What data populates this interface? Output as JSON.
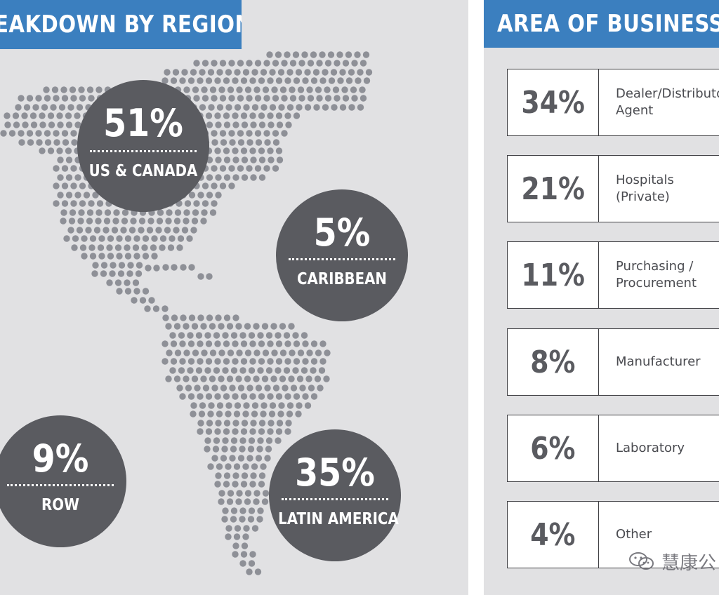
{
  "left_panel": {
    "title": "EAKDOWN BY REGION",
    "regions": [
      {
        "id": "us-canada",
        "percent": "51%",
        "label": "US & CANADA"
      },
      {
        "id": "caribbean",
        "percent": "5%",
        "label": "CARIBBEAN"
      },
      {
        "id": "row",
        "percent": "9%",
        "label": "ROW"
      },
      {
        "id": "latin-america",
        "percent": "35%",
        "label": "LATIN AMERICA"
      }
    ]
  },
  "right_panel": {
    "title": "AREA OF BUSINESS",
    "rows": [
      {
        "percent": "34%",
        "category": "Dealer/Distributo\nAgent"
      },
      {
        "percent": "21%",
        "category": "Hospitals (Private)"
      },
      {
        "percent": "11%",
        "category": "Purchasing /\nProcurement"
      },
      {
        "percent": "8%",
        "category": "Manufacturer"
      },
      {
        "percent": "6%",
        "category": "Laboratory"
      },
      {
        "percent": "4%",
        "category": "Other"
      }
    ]
  },
  "watermark": {
    "text": "慧康公",
    "icon": "wechat-icon"
  },
  "colors": {
    "header_blue": "#3b7fbf",
    "panel_bg": "#e1e1e3",
    "bubble": "#5a5b60",
    "map_dot": "#8e9097",
    "text_dark": "#4a4b50"
  }
}
